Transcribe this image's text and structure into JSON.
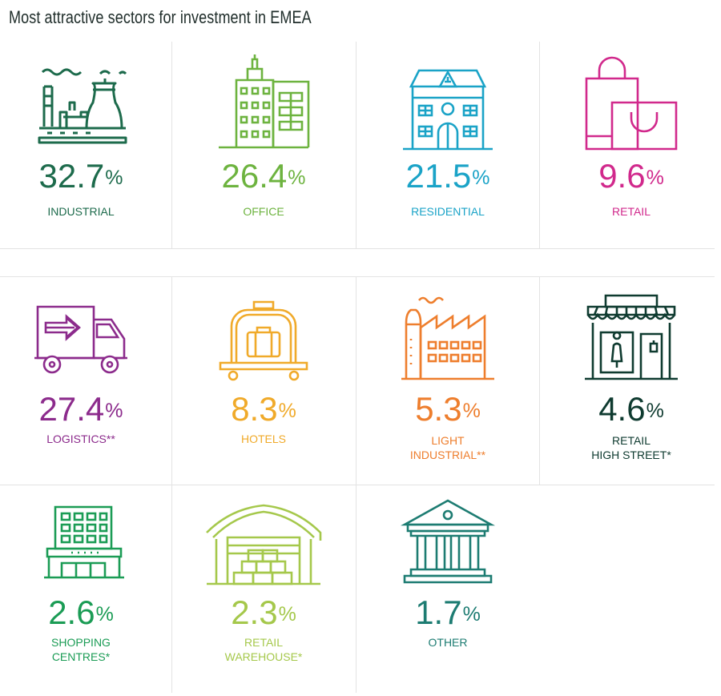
{
  "chart_data": {
    "type": "table",
    "title": "Most attractive sectors for investment in EMEA",
    "sectors": [
      {
        "value": "32.7",
        "unit": "%",
        "label": "INDUSTRIAL",
        "color": "#1d6b4c",
        "icon": "industrial-plant-icon"
      },
      {
        "value": "26.4",
        "unit": "%",
        "label": "OFFICE",
        "color": "#6db33f",
        "icon": "office-buildings-icon"
      },
      {
        "value": "21.5",
        "unit": "%",
        "label": "RESIDENTIAL",
        "color": "#1aa3c7",
        "icon": "house-icon"
      },
      {
        "value": "9.6",
        "unit": "%",
        "label": "RETAIL",
        "color": "#d1298c",
        "icon": "shopping-bags-icon"
      },
      {
        "value": "27.4",
        "unit": "%",
        "label": "LOGISTICS**",
        "color": "#8c2b8c",
        "icon": "delivery-truck-icon"
      },
      {
        "value": "8.3",
        "unit": "%",
        "label": "HOTELS",
        "color": "#f0aa2a",
        "icon": "luggage-trolley-icon"
      },
      {
        "value": "5.3",
        "unit": "%",
        "label": "LIGHT\nINDUSTRIAL**",
        "color": "#ee7e2d",
        "icon": "factory-icon"
      },
      {
        "value": "4.6",
        "unit": "%",
        "label": "RETAIL\nHIGH STREET*",
        "color": "#0f3b30",
        "icon": "shop-front-icon"
      },
      {
        "value": "2.6",
        "unit": "%",
        "label": "SHOPPING\nCENTRES*",
        "color": "#1b9c55",
        "icon": "shopping-centre-icon"
      },
      {
        "value": "2.3",
        "unit": "%",
        "label": "RETAIL\nWAREHOUSE*",
        "color": "#a5c84b",
        "icon": "warehouse-icon"
      },
      {
        "value": "1.7",
        "unit": "%",
        "label": "OTHER",
        "color": "#1d7c72",
        "icon": "classical-building-icon"
      }
    ]
  }
}
